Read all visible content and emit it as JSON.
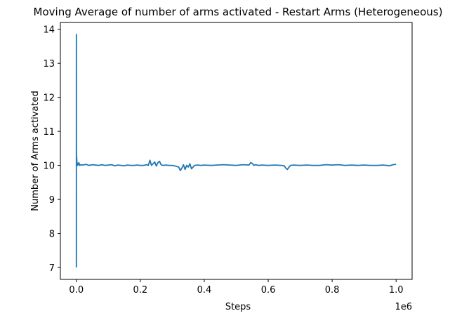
{
  "chart_data": {
    "type": "line",
    "title": "Moving Average of number of arms activated - Restart Arms (Heterogeneous)",
    "xlabel": "Steps",
    "ylabel": "Number of Arms activated",
    "x_offset_label": "1e6",
    "xlim": [
      -50000,
      1050000
    ],
    "ylim": [
      6.65,
      14.2
    ],
    "x_ticks": [
      0,
      200000,
      400000,
      600000,
      800000,
      1000000
    ],
    "x_tick_labels": [
      "0.0",
      "0.2",
      "0.4",
      "0.6",
      "0.8",
      "1.0"
    ],
    "y_ticks": [
      7,
      8,
      9,
      10,
      11,
      12,
      13,
      14
    ],
    "y_tick_labels": [
      "7",
      "8",
      "9",
      "10",
      "11",
      "12",
      "13",
      "14"
    ],
    "grid": false,
    "line_color": "#1f77b4",
    "series": [
      {
        "x": [
          0,
          100,
          200,
          400,
          700,
          1000,
          1500,
          2000,
          3000,
          4000,
          6000,
          8000,
          10000,
          15000,
          20000,
          30000,
          40000,
          50000,
          60000,
          70000,
          80000,
          90000,
          100000,
          110000,
          120000,
          130000,
          140000,
          150000,
          160000,
          170000,
          180000,
          190000,
          200000,
          210000,
          220000,
          225000,
          230000,
          235000,
          240000,
          245000,
          250000,
          255000,
          260000,
          265000,
          270000,
          280000,
          290000,
          300000,
          310000,
          320000,
          325000,
          330000,
          335000,
          340000,
          345000,
          350000,
          355000,
          360000,
          365000,
          370000,
          380000,
          390000,
          400000,
          420000,
          440000,
          460000,
          480000,
          500000,
          520000,
          540000,
          545000,
          550000,
          555000,
          560000,
          570000,
          580000,
          600000,
          620000,
          640000,
          650000,
          655000,
          660000,
          665000,
          670000,
          680000,
          700000,
          720000,
          740000,
          760000,
          780000,
          800000,
          820000,
          840000,
          860000,
          880000,
          900000,
          920000,
          940000,
          960000,
          970000,
          980000,
          990000,
          1000000
        ],
        "y": [
          7.0,
          13.85,
          10.6,
          10.3,
          10.1,
          10.25,
          10.05,
          10.1,
          10.0,
          10.05,
          10.02,
          10.08,
          10.0,
          10.02,
          10.01,
          10.03,
          10.0,
          10.02,
          10.01,
          10.0,
          10.02,
          10.0,
          10.01,
          10.02,
          9.99,
          10.01,
          10.0,
          9.99,
          10.01,
          10.0,
          10.0,
          10.01,
          10.0,
          10.0,
          10.02,
          10.0,
          10.15,
          10.0,
          10.05,
          10.1,
          9.98,
          10.08,
          10.12,
          10.02,
          10.0,
          10.01,
          10.0,
          10.0,
          9.98,
          9.95,
          9.85,
          9.92,
          10.02,
          9.88,
          10.0,
          9.95,
          10.05,
          9.9,
          9.95,
          10.0,
          10.01,
          10.0,
          10.01,
          10.0,
          10.01,
          10.02,
          10.01,
          10.0,
          10.02,
          10.01,
          10.08,
          10.06,
          10.0,
          10.02,
          10.0,
          10.01,
          10.0,
          10.01,
          10.0,
          9.99,
          9.92,
          9.88,
          9.95,
          10.0,
          10.01,
          10.0,
          10.01,
          10.0,
          10.0,
          10.02,
          10.01,
          10.02,
          10.0,
          10.01,
          10.0,
          10.01,
          10.0,
          10.0,
          10.01,
          10.0,
          9.99,
          10.02,
          10.03
        ]
      }
    ]
  }
}
